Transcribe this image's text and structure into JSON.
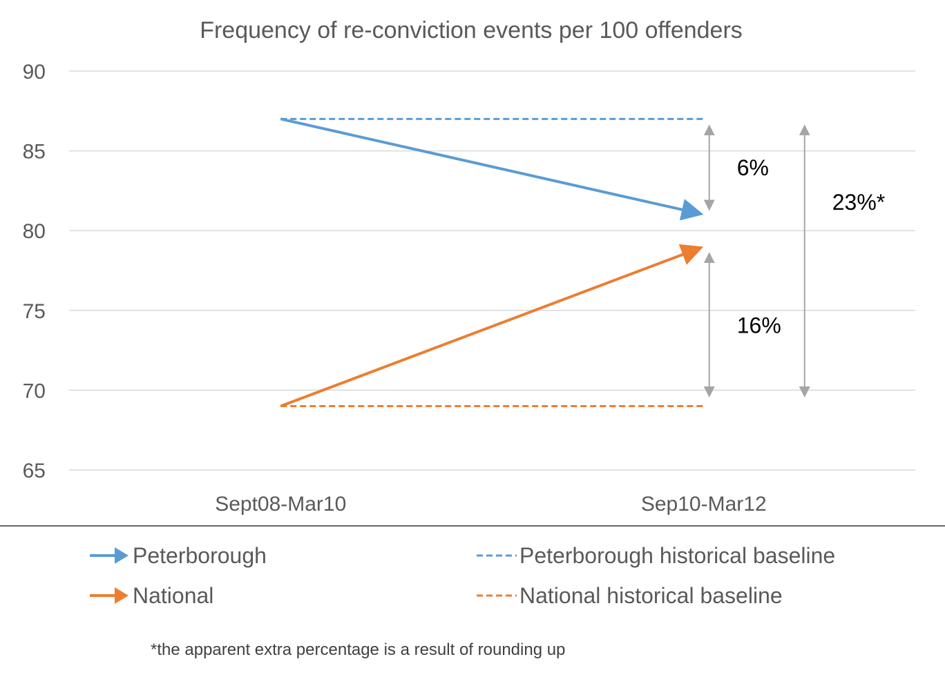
{
  "chart_data": {
    "type": "line",
    "title": "Frequency of re-conviction events per 100 offenders",
    "categories": [
      "Sept08-Mar10",
      "Sep10-Mar12"
    ],
    "ylim": [
      65,
      90
    ],
    "yticks": [
      "65",
      "70",
      "75",
      "80",
      "85",
      "90"
    ],
    "ytick_values": [
      65,
      70,
      75,
      80,
      85,
      90
    ],
    "grid": true,
    "series": [
      {
        "name": "Peterborough",
        "values": [
          87,
          81
        ],
        "color": "#5B9BD5",
        "style": "arrow"
      },
      {
        "name": "National",
        "values": [
          69,
          79
        ],
        "color": "#ED7D31",
        "style": "arrow"
      },
      {
        "name": "Peterborough historical baseline",
        "values": [
          87,
          87
        ],
        "color": "#5B9BD5",
        "style": "dashed"
      },
      {
        "name": "National historical baseline",
        "values": [
          69,
          69
        ],
        "color": "#ED7D31",
        "style": "dashed"
      }
    ],
    "annotations": [
      {
        "label": "6%",
        "from": 86.4,
        "to": 81.5,
        "category_offset": 0
      },
      {
        "label": "16%",
        "from": 78.4,
        "to": 69.8,
        "category_offset": 0
      },
      {
        "label": "23%*",
        "from": 86.4,
        "to": 69.8,
        "category_offset": 1
      }
    ],
    "annotation_color": "#A5A5A5",
    "legend_position": "bottom",
    "footnote": "*the apparent extra percentage is a result of rounding up"
  }
}
